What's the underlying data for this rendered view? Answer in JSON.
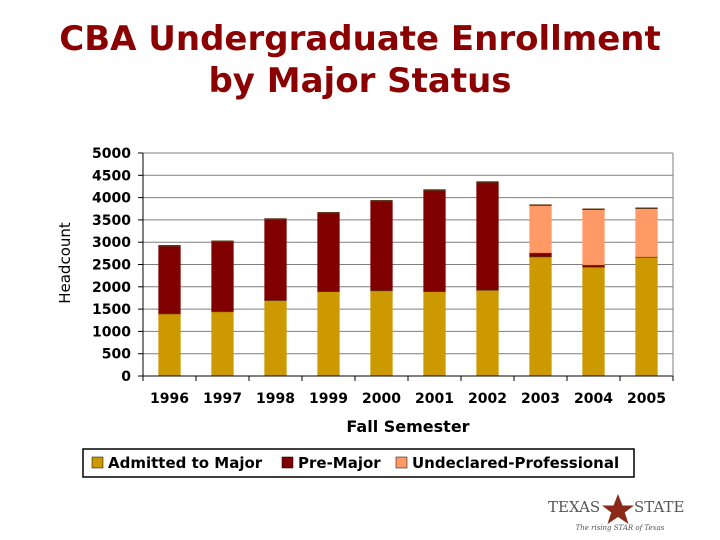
{
  "title_lines": [
    "CBA Undergraduate Enrollment",
    "by Major Status"
  ],
  "logo": {
    "text_left": "TEXAS",
    "text_right": "STATE",
    "tagline": "The rising STAR of Texas",
    "star_color": "#8b2a1a"
  },
  "chart_data": {
    "type": "bar",
    "stacked": true,
    "title": "CBA Undergraduate Enrollment by Major Status",
    "xlabel": "Fall Semester",
    "ylabel": "Headcount",
    "ylim": [
      0,
      5000
    ],
    "yticks": [
      0,
      500,
      1000,
      1500,
      2000,
      2500,
      3000,
      3500,
      4000,
      4500,
      5000
    ],
    "grid": true,
    "legend_position": "bottom",
    "categories": [
      "1996",
      "1997",
      "1998",
      "1999",
      "2000",
      "2001",
      "2002",
      "2003",
      "2004",
      "2005"
    ],
    "series": [
      {
        "name": "Admitted to Major",
        "color": "#cc9900",
        "values": [
          1400,
          1450,
          1700,
          1900,
          1920,
          1900,
          1930,
          2680,
          2450,
          2670
        ]
      },
      {
        "name": "Pre-Major",
        "color": "#800000",
        "values": [
          1520,
          1570,
          1820,
          1760,
          2010,
          2270,
          2420,
          80,
          40,
          0
        ]
      },
      {
        "name": "Undeclared-Professional",
        "color": "#ff9966",
        "values": [
          0,
          0,
          0,
          0,
          0,
          0,
          0,
          1070,
          1250,
          1090
        ]
      }
    ]
  }
}
